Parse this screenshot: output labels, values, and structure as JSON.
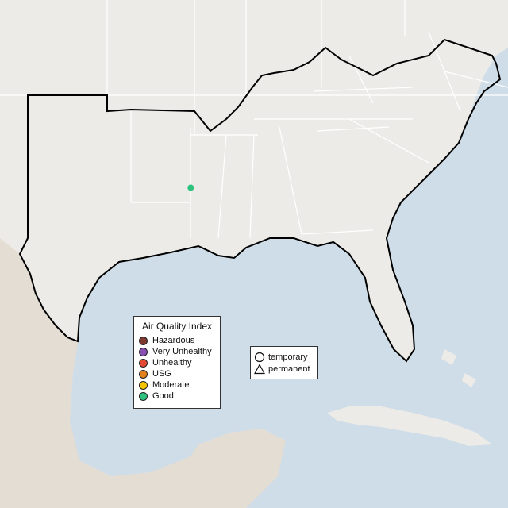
{
  "colors": {
    "water": "#cfdde8",
    "land": "#ecebe8",
    "mexico_land": "#e4ddd3",
    "state_border": "#ffffff",
    "region_outline": "#000000"
  },
  "aqi_levels": [
    {
      "key": "hazardous",
      "label": "Hazardous",
      "color": "#7e3a2f"
    },
    {
      "key": "very_unhealthy",
      "label": "Very Unhealthy",
      "color": "#8b4fb2"
    },
    {
      "key": "unhealthy",
      "label": "Unhealthy",
      "color": "#e34a33"
    },
    {
      "key": "usg",
      "label": "USG",
      "color": "#e3801e"
    },
    {
      "key": "moderate",
      "label": "Moderate",
      "color": "#f2c500"
    },
    {
      "key": "good",
      "label": "Good",
      "color": "#2ec27e"
    }
  ],
  "legend": {
    "title": "Air Quality Index",
    "monitor_types": [
      {
        "key": "temporary",
        "label": "temporary",
        "shape": "circle"
      },
      {
        "key": "permanent",
        "label": "permanent",
        "shape": "triangle"
      }
    ]
  },
  "monitors": [
    {
      "lon": -97.6,
      "lat": 30.3,
      "aqi": "good"
    }
  ]
}
